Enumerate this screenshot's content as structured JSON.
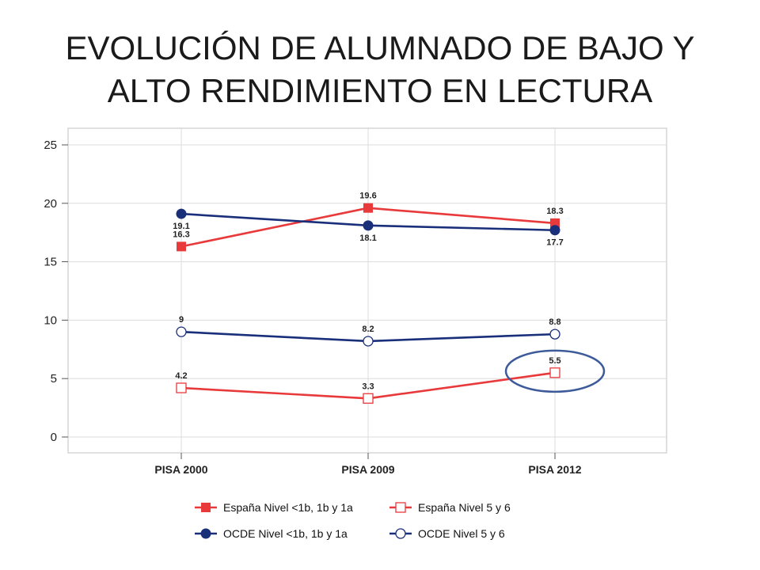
{
  "slide": {
    "title_line1": "EVOLUCIÓN DE ALUMNADO DE BAJO Y",
    "title_line2": "ALTO RENDIMIENTO EN LECTURA"
  },
  "chart_data": {
    "type": "line",
    "categories": [
      "PISA 2000",
      "PISA 2009",
      "PISA 2012"
    ],
    "ylim": [
      0,
      25
    ],
    "yticks": [
      0,
      5,
      10,
      15,
      20,
      25
    ],
    "grid": true,
    "legend_position": "bottom",
    "series": [
      {
        "name": "España Nivel <1b, 1b y 1a",
        "values": [
          16.3,
          19.6,
          18.3
        ],
        "labels": [
          "16.3",
          "19.6",
          "18.3"
        ],
        "color": "#e8393b",
        "marker": "filled-square",
        "label_pos": [
          "above",
          "above",
          "above"
        ]
      },
      {
        "name": "España Nivel 5 y 6",
        "values": [
          4.2,
          3.3,
          5.5
        ],
        "labels": [
          "4.2",
          "3.3",
          "5.5"
        ],
        "color": "#e8393b",
        "marker": "hollow-square",
        "label_pos": [
          "above",
          "above",
          "above"
        ]
      },
      {
        "name": "OCDE Nivel <1b, 1b y 1a",
        "values": [
          19.1,
          18.1,
          17.7
        ],
        "labels": [
          "19.1",
          "18.1",
          "17.7"
        ],
        "color": "#1a2f7a",
        "marker": "filled-circle",
        "label_pos": [
          "below",
          "below",
          "below"
        ]
      },
      {
        "name": "OCDE Nivel 5 y 6",
        "values": [
          9,
          8.2,
          8.8
        ],
        "labels": [
          "9",
          "8.2",
          "8.8"
        ],
        "color": "#1a2f7a",
        "marker": "hollow-circle",
        "label_pos": [
          "above",
          "above",
          "above"
        ]
      }
    ],
    "highlight": {
      "category": "PISA 2012",
      "value": 5.5,
      "color": "#3d5a99"
    }
  }
}
